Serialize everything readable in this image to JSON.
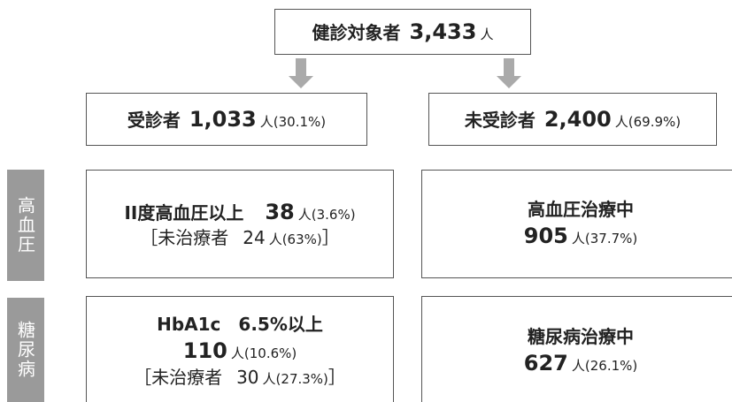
{
  "top": {
    "label": "健診対象者",
    "count": "3,433",
    "unit": "人"
  },
  "examined": {
    "label": "受診者",
    "count": "1,033",
    "unit": "人",
    "pct": "(30.1%)"
  },
  "not_examined": {
    "label": "未受診者",
    "count": "2,400",
    "unit": "人",
    "pct": "(69.9%)"
  },
  "sides": [
    "高血圧",
    "糖尿病"
  ],
  "hypertension": {
    "label": "II度高血圧以上",
    "count": "38",
    "unit": "人",
    "pct": "(3.6%)",
    "untreated": {
      "open": "［未治療者",
      "count": "24",
      "unit": "人",
      "pct": "(63%)",
      "close": "］"
    }
  },
  "hypertension_treated": {
    "label": "高血圧治療中",
    "count": "905",
    "unit": "人",
    "pct": "(37.7%)"
  },
  "diabetes": {
    "label": "HbA1c　6.5%以上",
    "count": "110",
    "unit": "人",
    "pct": "(10.6%)",
    "untreated": {
      "open": "［未治療者",
      "count": "30",
      "unit": "人",
      "pct": "(27.3%)",
      "close": "］"
    }
  },
  "diabetes_treated": {
    "label": "糖尿病治療中",
    "count": "627",
    "unit": "人",
    "pct": "(26.1%)"
  }
}
